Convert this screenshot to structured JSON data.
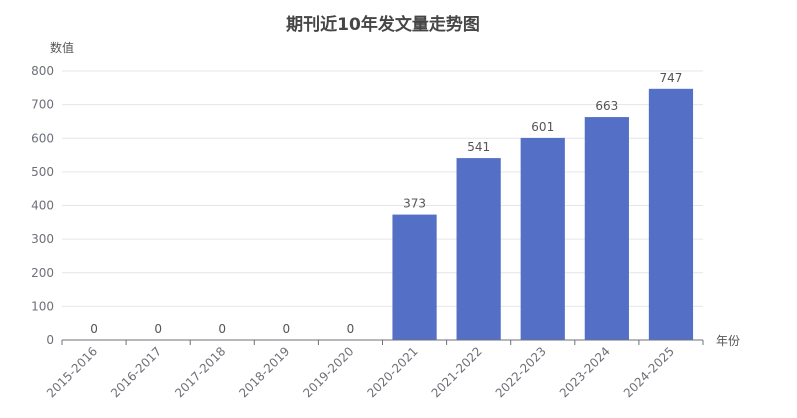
{
  "chart_data": {
    "type": "bar",
    "title": "期刊近10年发文量走势图",
    "xlabel": "年份",
    "ylabel": "数值",
    "categories": [
      "2015-2016",
      "2016-2017",
      "2017-2018",
      "2018-2019",
      "2019-2020",
      "2020-2021",
      "2021-2022",
      "2022-2023",
      "2023-2024",
      "2024-2025"
    ],
    "values": [
      0,
      0,
      0,
      0,
      0,
      373,
      541,
      601,
      663,
      747
    ],
    "ylim": [
      0,
      800
    ],
    "yticks": [
      0,
      100,
      200,
      300,
      400,
      500,
      600,
      700,
      800
    ],
    "grid": true,
    "legend": "none",
    "colors": {
      "bar": "#5470c6",
      "grid": "#e6e6ea",
      "axis": "#6e7079",
      "text": "#555555",
      "title": "#464646"
    }
  }
}
